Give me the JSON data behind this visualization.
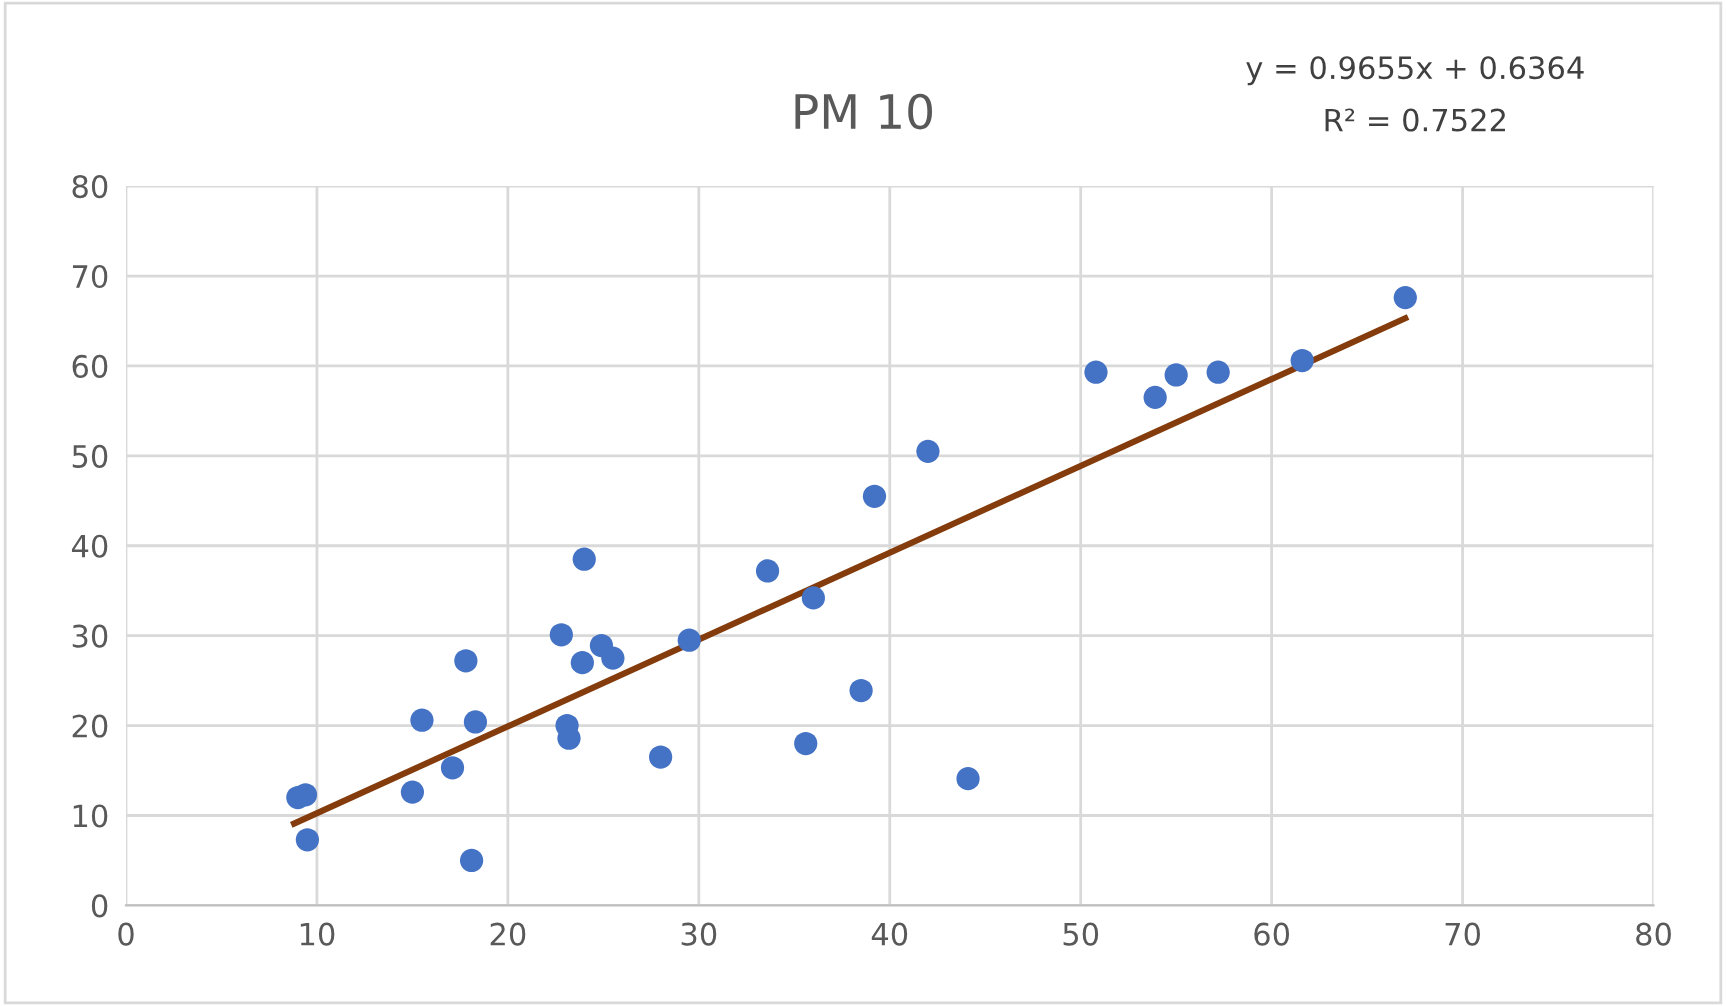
{
  "chart_data": {
    "type": "scatter",
    "title": "PM 10",
    "annotations": [
      "y = 0.9655x + 0.6364",
      "R² = 0.7522"
    ],
    "xlim": [
      0,
      80
    ],
    "xticks": [
      0,
      10,
      20,
      30,
      40,
      50,
      60,
      70,
      80
    ],
    "ylim": [
      0,
      80
    ],
    "yticks": [
      0,
      10,
      20,
      30,
      40,
      50,
      60,
      70,
      80
    ],
    "grid": true,
    "series": [
      {
        "marker": "circle",
        "color": "#4472c4",
        "x": [
          9.0,
          9.4,
          9.5,
          15.0,
          15.5,
          17.1,
          17.8,
          18.1,
          18.3,
          22.8,
          23.1,
          23.2,
          23.9,
          24.0,
          24.9,
          25.5,
          28.0,
          29.5,
          33.6,
          35.6,
          36.0,
          38.5,
          39.2,
          42.0,
          44.1,
          50.8,
          53.9,
          55.0,
          57.2,
          61.6,
          67.0
        ],
        "values": [
          12.0,
          12.3,
          7.3,
          12.6,
          20.6,
          15.3,
          27.2,
          5.0,
          20.4,
          30.1,
          20.0,
          18.6,
          27.0,
          38.5,
          28.9,
          27.5,
          16.5,
          29.5,
          37.2,
          18.0,
          34.2,
          23.9,
          45.5,
          50.5,
          14.1,
          59.3,
          56.5,
          59.0,
          59.3,
          60.6,
          67.6
        ]
      },
      {
        "type": "line",
        "color": "#843c0c",
        "line_style": "solid",
        "x": [
          8.8,
          67.0
        ],
        "values": [
          9.1,
          65.3
        ]
      }
    ]
  }
}
